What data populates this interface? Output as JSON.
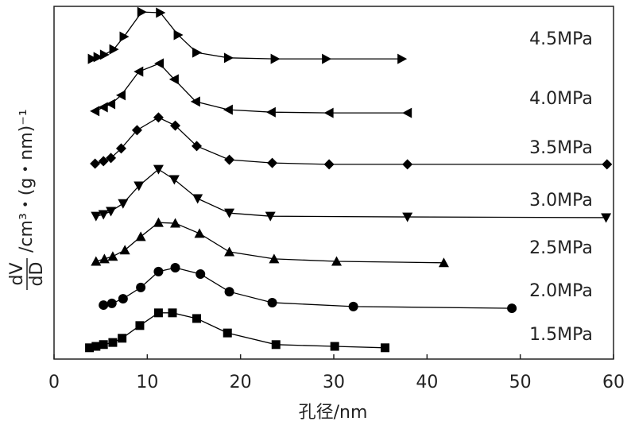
{
  "chart_data": {
    "type": "line",
    "x_label": "孔径/nm",
    "y_label": {
      "numerator": "dV",
      "denominator": "dD",
      "unit": "/cm³・(g・nm)⁻¹"
    },
    "xlim": [
      0,
      60
    ],
    "xticks": [
      0,
      10,
      20,
      30,
      40,
      50,
      60
    ],
    "ylim": [
      0,
      100
    ],
    "color": "#000000",
    "series": [
      {
        "name": "1.5MPa",
        "marker": "square",
        "x": [
          3.8,
          4.5,
          5.3,
          6.3,
          7.3,
          9.2,
          11.2,
          12.7,
          15.3,
          18.6,
          23.8,
          30.1,
          35.5
        ],
        "values": [
          3.2,
          3.6,
          4.1,
          4.7,
          5.9,
          9.5,
          13.1,
          13.1,
          11.5,
          7.4,
          4.1,
          3.6,
          3.2
        ]
      },
      {
        "name": "2.0MPa",
        "marker": "circle",
        "x": [
          5.3,
          6.2,
          7.4,
          9.3,
          11.2,
          13.0,
          15.7,
          18.8,
          23.4,
          32.1,
          49.1
        ],
        "values": [
          15.3,
          15.8,
          17.1,
          20.3,
          24.8,
          25.9,
          24.1,
          19.1,
          16.0,
          14.9,
          14.4
        ]
      },
      {
        "name": "2.5MPa",
        "marker": "triangle-up",
        "x": [
          4.5,
          5.4,
          6.3,
          7.6,
          9.3,
          11.2,
          13.0,
          15.6,
          18.8,
          23.6,
          30.3,
          41.8
        ],
        "values": [
          27.7,
          28.4,
          29.1,
          30.9,
          34.7,
          38.7,
          38.5,
          35.6,
          30.4,
          28.4,
          27.7,
          27.3
        ]
      },
      {
        "name": "3.0MPa",
        "marker": "triangle-down",
        "x": [
          4.5,
          5.3,
          6.1,
          7.4,
          9.1,
          11.2,
          12.9,
          15.4,
          18.8,
          23.2,
          37.9,
          59.2
        ],
        "values": [
          40.5,
          41.0,
          41.9,
          44.1,
          49.1,
          53.8,
          50.9,
          45.5,
          41.4,
          40.5,
          40.3,
          40.1
        ]
      },
      {
        "name": "3.5MPa",
        "marker": "diamond",
        "x": [
          4.4,
          5.3,
          6.1,
          7.2,
          8.9,
          11.2,
          13.0,
          15.3,
          18.8,
          23.4,
          29.5,
          37.9,
          59.3
        ],
        "values": [
          55.4,
          56.1,
          57.0,
          59.7,
          64.9,
          68.5,
          66.2,
          60.4,
          56.5,
          55.6,
          55.2,
          55.2,
          55.2
        ]
      },
      {
        "name": "4.0MPa",
        "marker": "triangle-left",
        "x": [
          4.4,
          5.3,
          6.1,
          7.2,
          9.1,
          11.3,
          12.9,
          15.2,
          18.7,
          23.3,
          29.5,
          37.9
        ],
        "values": [
          70.3,
          71.4,
          72.3,
          74.8,
          81.5,
          83.8,
          79.3,
          73.0,
          70.7,
          70.0,
          69.8,
          69.8
        ]
      },
      {
        "name": "4.5MPa",
        "marker": "triangle-right",
        "x": [
          4.1,
          4.7,
          5.4,
          6.4,
          7.5,
          9.4,
          11.4,
          13.3,
          15.3,
          18.7,
          23.7,
          29.2,
          37.3
        ],
        "values": [
          85.1,
          85.6,
          86.3,
          87.8,
          91.4,
          98.4,
          98.2,
          91.9,
          86.9,
          85.4,
          85.1,
          85.1,
          85.1
        ]
      }
    ]
  }
}
